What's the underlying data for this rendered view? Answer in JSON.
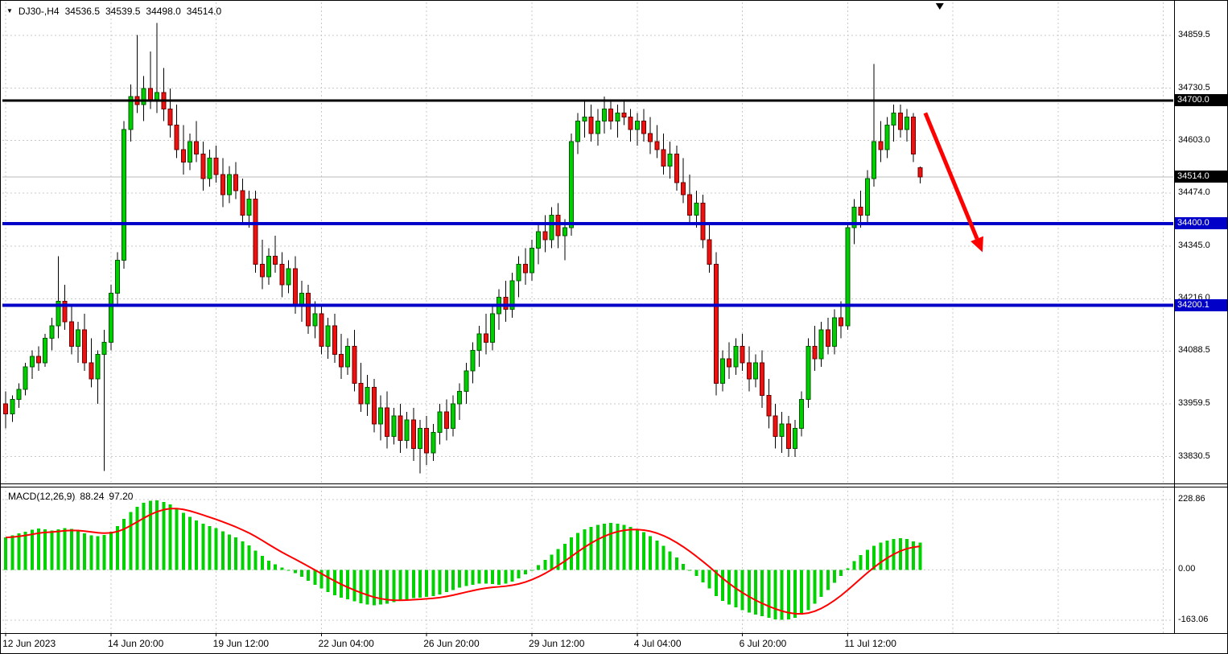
{
  "window": {
    "title": "DJ30-,H4"
  },
  "header": {
    "dropdown_icon": "▼",
    "symbol": "DJ30-,H4",
    "open": "34536.5",
    "high": "34539.5",
    "low": "34498.0",
    "close": "34514.0"
  },
  "price_axis": {
    "ticks": [
      "34859.5",
      "34730.5",
      "34603.0",
      "34474.0",
      "34345.0",
      "34216.0",
      "34088.5",
      "33959.5",
      "33830.5"
    ],
    "tick_values": [
      34859.5,
      34730.5,
      34603.0,
      34474.0,
      34345.0,
      34216.0,
      34088.5,
      33959.5,
      33830.5
    ]
  },
  "time_axis": {
    "labels": [
      "12 Jun 2023",
      "14 Jun 20:00",
      "19 Jun 12:00",
      "22 Jun 04:00",
      "26 Jun 20:00",
      "29 Jun 12:00",
      "4 Jul 04:00",
      "6 Jul 20:00",
      "11 Jul 12:00"
    ],
    "indices": [
      0,
      16,
      32,
      48,
      64,
      80,
      96,
      112,
      128
    ]
  },
  "indicator": {
    "name": "MACD(12,26,9)",
    "macd_value": "88.24",
    "signal_value": "97.20",
    "ticks": [
      "228.86",
      "0.00",
      "-163.06"
    ],
    "tick_values": [
      228.86,
      0,
      -163.06
    ]
  },
  "colors": {
    "grid": "#C8C8C8",
    "bull": "#00CE00",
    "bull_border": "#005A00",
    "bear": "#EF1010",
    "bear_border": "#6B0000",
    "wick": "#000000",
    "histogram": "#00D200",
    "signal": "#FF0000",
    "separator": "#000000",
    "level_black": "#000000",
    "level_blue": "#0000C8",
    "bid_line": "#BBBBBB",
    "arrow": "#FF0000"
  },
  "chart_data": {
    "type": "candlestick",
    "symbol": "DJ30-",
    "timeframe": "H4",
    "title": "DJ30-,H4 with two blue support lines, black resistance line at 34700 and red down arrow; MACD(12,26,9) sub-window",
    "price_range": [
      33765,
      34940
    ],
    "candles": [
      [
        33960,
        33990,
        33900,
        33935
      ],
      [
        33935,
        33980,
        33915,
        33970
      ],
      [
        33970,
        34010,
        33950,
        33995
      ],
      [
        33995,
        34060,
        33980,
        34050
      ],
      [
        34050,
        34090,
        34020,
        34075
      ],
      [
        34075,
        34100,
        34040,
        34060
      ],
      [
        34060,
        34130,
        34050,
        34120
      ],
      [
        34120,
        34170,
        34090,
        34150
      ],
      [
        34150,
        34320,
        34120,
        34210
      ],
      [
        34210,
        34250,
        34140,
        34160
      ],
      [
        34160,
        34200,
        34080,
        34100
      ],
      [
        34100,
        34160,
        34060,
        34140
      ],
      [
        34140,
        34180,
        34040,
        34060
      ],
      [
        34060,
        34120,
        34000,
        34020
      ],
      [
        34020,
        34090,
        33960,
        34080
      ],
      [
        34080,
        34140,
        33795,
        34110
      ],
      [
        34110,
        34250,
        34090,
        34230
      ],
      [
        34230,
        34330,
        34200,
        34310
      ],
      [
        34310,
        34650,
        34290,
        34630
      ],
      [
        34630,
        34740,
        34600,
        34710
      ],
      [
        34710,
        34860,
        34670,
        34690
      ],
      [
        34690,
        34760,
        34650,
        34730
      ],
      [
        34730,
        34820,
        34680,
        34700
      ],
      [
        34700,
        34890,
        34670,
        34720
      ],
      [
        34720,
        34780,
        34650,
        34680
      ],
      [
        34680,
        34730,
        34610,
        34640
      ],
      [
        34640,
        34690,
        34560,
        34580
      ],
      [
        34580,
        34640,
        34520,
        34550
      ],
      [
        34550,
        34620,
        34530,
        34600
      ],
      [
        34600,
        34650,
        34550,
        34570
      ],
      [
        34570,
        34600,
        34480,
        34510
      ],
      [
        34510,
        34580,
        34490,
        34560
      ],
      [
        34560,
        34590,
        34500,
        34520
      ],
      [
        34520,
        34560,
        34440,
        34470
      ],
      [
        34470,
        34540,
        34450,
        34520
      ],
      [
        34520,
        34550,
        34460,
        34480
      ],
      [
        34480,
        34510,
        34400,
        34420
      ],
      [
        34420,
        34480,
        34390,
        34460
      ],
      [
        34460,
        34480,
        34280,
        34300
      ],
      [
        34300,
        34360,
        34240,
        34270
      ],
      [
        34270,
        34340,
        34250,
        34320
      ],
      [
        34320,
        34370,
        34280,
        34300
      ],
      [
        34300,
        34330,
        34220,
        34250
      ],
      [
        34250,
        34310,
        34230,
        34290
      ],
      [
        34290,
        34320,
        34180,
        34200
      ],
      [
        34200,
        34260,
        34160,
        34230
      ],
      [
        34230,
        34250,
        34130,
        34150
      ],
      [
        34150,
        34210,
        34120,
        34180
      ],
      [
        34180,
        34200,
        34080,
        34100
      ],
      [
        34100,
        34170,
        34070,
        34150
      ],
      [
        34150,
        34180,
        34060,
        34080
      ],
      [
        34080,
        34130,
        34020,
        34050
      ],
      [
        34050,
        34120,
        34030,
        34100
      ],
      [
        34100,
        34140,
        33990,
        34010
      ],
      [
        34010,
        34060,
        33940,
        33960
      ],
      [
        33960,
        34030,
        33930,
        34000
      ],
      [
        34000,
        34020,
        33890,
        33910
      ],
      [
        33910,
        33980,
        33870,
        33950
      ],
      [
        33950,
        33990,
        33850,
        33880
      ],
      [
        33880,
        33950,
        33860,
        33930
      ],
      [
        33930,
        33960,
        33840,
        33870
      ],
      [
        33870,
        33940,
        33850,
        33920
      ],
      [
        33920,
        33950,
        33820,
        33850
      ],
      [
        33850,
        33920,
        33790,
        33900
      ],
      [
        33900,
        33930,
        33810,
        33840
      ],
      [
        33840,
        33910,
        33820,
        33890
      ],
      [
        33890,
        33960,
        33860,
        33940
      ],
      [
        33940,
        33970,
        33870,
        33900
      ],
      [
        33900,
        33980,
        33880,
        33960
      ],
      [
        33960,
        34010,
        33920,
        33990
      ],
      [
        33990,
        34060,
        33960,
        34040
      ],
      [
        34040,
        34110,
        34010,
        34090
      ],
      [
        34090,
        34150,
        34050,
        34130
      ],
      [
        34130,
        34180,
        34080,
        34110
      ],
      [
        34110,
        34200,
        34090,
        34180
      ],
      [
        34180,
        34240,
        34140,
        34220
      ],
      [
        34220,
        34260,
        34160,
        34190
      ],
      [
        34190,
        34280,
        34170,
        34260
      ],
      [
        34260,
        34320,
        34220,
        34300
      ],
      [
        34300,
        34340,
        34250,
        34280
      ],
      [
        34280,
        34360,
        34260,
        34340
      ],
      [
        34340,
        34400,
        34300,
        34380
      ],
      [
        34380,
        34420,
        34330,
        34360
      ],
      [
        34360,
        34440,
        34340,
        34420
      ],
      [
        34420,
        34450,
        34340,
        34370
      ],
      [
        34370,
        34410,
        34310,
        34390
      ],
      [
        34390,
        34620,
        34370,
        34600
      ],
      [
        34600,
        34670,
        34570,
        34650
      ],
      [
        34650,
        34700,
        34610,
        34660
      ],
      [
        34660,
        34690,
        34600,
        34620
      ],
      [
        34620,
        34680,
        34590,
        34650
      ],
      [
        34650,
        34710,
        34620,
        34680
      ],
      [
        34680,
        34700,
        34630,
        34650
      ],
      [
        34650,
        34690,
        34610,
        34670
      ],
      [
        34670,
        34700,
        34640,
        34660
      ],
      [
        34660,
        34680,
        34600,
        34630
      ],
      [
        34630,
        34670,
        34590,
        34650
      ],
      [
        34650,
        34680,
        34600,
        34620
      ],
      [
        34620,
        34660,
        34570,
        34600
      ],
      [
        34600,
        34640,
        34560,
        34580
      ],
      [
        34580,
        34620,
        34520,
        34540
      ],
      [
        34540,
        34600,
        34510,
        34570
      ],
      [
        34570,
        34590,
        34480,
        34500
      ],
      [
        34500,
        34560,
        34450,
        34470
      ],
      [
        34470,
        34520,
        34400,
        34420
      ],
      [
        34420,
        34480,
        34390,
        34450
      ],
      [
        34450,
        34470,
        34340,
        34360
      ],
      [
        34360,
        34400,
        34280,
        34300
      ],
      [
        34300,
        34330,
        33980,
        34010
      ],
      [
        34010,
        34090,
        33990,
        34070
      ],
      [
        34070,
        34110,
        34020,
        34050
      ],
      [
        34050,
        34120,
        34030,
        34100
      ],
      [
        34100,
        34130,
        34040,
        34060
      ],
      [
        34060,
        34100,
        33990,
        34020
      ],
      [
        34020,
        34080,
        34000,
        34060
      ],
      [
        34060,
        34090,
        33950,
        33980
      ],
      [
        33980,
        34020,
        33900,
        33930
      ],
      [
        33930,
        33960,
        33850,
        33880
      ],
      [
        33880,
        33940,
        33840,
        33910
      ],
      [
        33910,
        33930,
        33830,
        33850
      ],
      [
        33850,
        33920,
        33830,
        33900
      ],
      [
        33900,
        33990,
        33880,
        33970
      ],
      [
        33970,
        34120,
        33950,
        34100
      ],
      [
        34100,
        34150,
        34040,
        34070
      ],
      [
        34070,
        34160,
        34050,
        34140
      ],
      [
        34140,
        34170,
        34080,
        34100
      ],
      [
        34100,
        34190,
        34080,
        34170
      ],
      [
        34170,
        34210,
        34120,
        34150
      ],
      [
        34150,
        34400,
        34140,
        34390
      ],
      [
        34390,
        34460,
        34350,
        34440
      ],
      [
        34440,
        34480,
        34390,
        34420
      ],
      [
        34420,
        34530,
        34400,
        34510
      ],
      [
        34510,
        34790,
        34490,
        34600
      ],
      [
        34600,
        34650,
        34550,
        34580
      ],
      [
        34580,
        34660,
        34560,
        34640
      ],
      [
        34640,
        34690,
        34600,
        34670
      ],
      [
        34670,
        34690,
        34610,
        34630
      ],
      [
        34630,
        34680,
        34600,
        34660
      ],
      [
        34660,
        34670,
        34550,
        34570
      ],
      [
        34536.5,
        34539.5,
        34498,
        34514
      ]
    ],
    "hlines": [
      {
        "price": 34700.0,
        "label": "34700.0",
        "color": "#000000",
        "line_width": 3,
        "label_bg": "#000000"
      },
      {
        "price": 34400.0,
        "label": "34400.0",
        "color": "#0000C8",
        "line_width": 4,
        "label_bg": "#0000C8"
      },
      {
        "price": 34200.1,
        "label": "34200.1",
        "color": "#0000C8",
        "line_width": 4,
        "label_bg": "#0000C8"
      }
    ],
    "bid": {
      "price": 34514.0,
      "label": "34514.0",
      "line_color": "#BBBBBB",
      "label_bg": "#000000"
    },
    "arrow": {
      "from_index": 139.8,
      "from_price": 34670,
      "to_index": 148.5,
      "to_price": 34330,
      "color": "#FF0000",
      "width": 5
    },
    "grid_extra_indices": [
      144,
      160,
      176
    ],
    "macd": {
      "type": "histogram+signal",
      "range": [
        -205,
        270
      ],
      "signal_period": 9,
      "histogram": [
        105,
        112,
        118,
        124,
        130,
        134,
        132,
        128,
        132,
        136,
        133,
        126,
        118,
        112,
        110,
        114,
        124,
        142,
        165,
        188,
        205,
        218,
        224,
        226,
        221,
        213,
        200,
        185,
        172,
        160,
        150,
        142,
        135,
        125,
        115,
        105,
        92,
        80,
        62,
        45,
        30,
        18,
        8,
        0,
        -10,
        -22,
        -35,
        -48,
        -60,
        -72,
        -82,
        -90,
        -96,
        -102,
        -108,
        -112,
        -115,
        -113,
        -110,
        -105,
        -100,
        -95,
        -92,
        -90,
        -88,
        -85,
        -80,
        -72,
        -65,
        -58,
        -52,
        -48,
        -45,
        -44,
        -46,
        -48,
        -45,
        -38,
        -28,
        -15,
        0,
        15,
        32,
        50,
        68,
        85,
        105,
        120,
        132,
        140,
        146,
        150,
        152,
        150,
        146,
        140,
        132,
        122,
        110,
        95,
        78,
        60,
        40,
        20,
        0,
        -20,
        -40,
        -60,
        -85,
        -100,
        -112,
        -122,
        -130,
        -138,
        -145,
        -150,
        -155,
        -160,
        -162,
        -160,
        -155,
        -145,
        -130,
        -110,
        -88,
        -65,
        -42,
        -20,
        5,
        28,
        48,
        65,
        78,
        88,
        95,
        100,
        103,
        100,
        92,
        88.24
      ]
    }
  }
}
